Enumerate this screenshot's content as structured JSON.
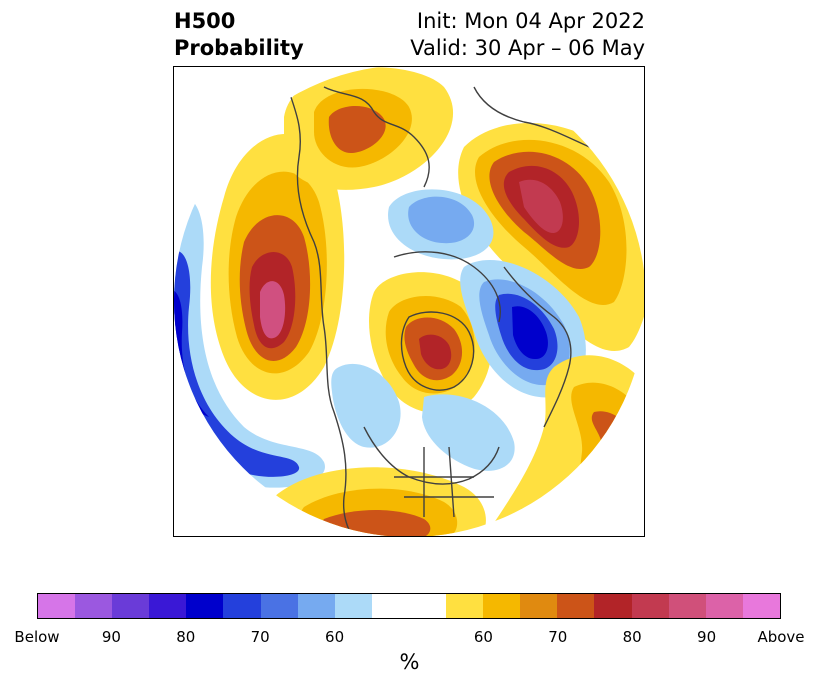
{
  "title": {
    "left_line1": "H500",
    "left_line2": "Probability",
    "right_line1": "Init: Mon 04 Apr 2022",
    "right_line2": "Valid: 30 Apr – 06 May"
  },
  "colorbar": {
    "colors": [
      "#d675e8",
      "#9b58e0",
      "#6a3bd8",
      "#3a18d6",
      "#0000cc",
      "#2440dc",
      "#4a72e4",
      "#76aaf0",
      "#acdaf8",
      "#ffffff",
      "#ffffff",
      "#ffe040",
      "#f5b800",
      "#e08a10",
      "#cc5418",
      "#b22428",
      "#c23a50",
      "#d0507a",
      "#dc62a8",
      "#e878dc"
    ],
    "tick_labels": [
      "Below",
      "90",
      "80",
      "70",
      "60",
      "60",
      "70",
      "80",
      "90",
      "Above"
    ],
    "unit_label": "%"
  },
  "legend_colors": {
    "above_light": "#ffe040",
    "above_medium": "#f5b800",
    "above_strong": "#cc5418",
    "above_max": "#b22428",
    "above_extreme": "#d05080",
    "below_light": "#acdaf8",
    "below_medium": "#76aaf0",
    "below_strong": "#2440dc",
    "below_max": "#0000cc"
  }
}
